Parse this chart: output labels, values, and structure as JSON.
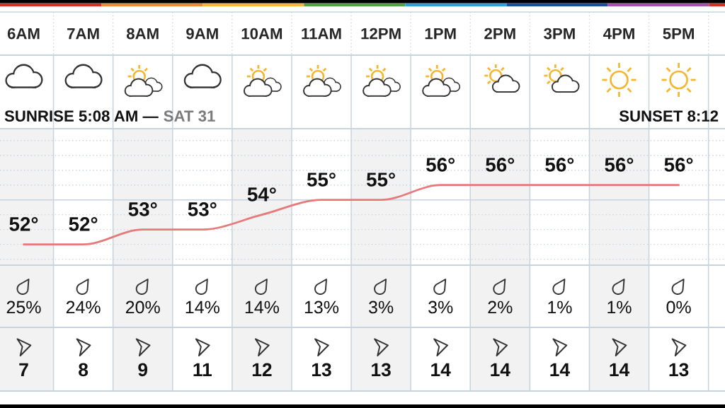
{
  "chart_data": [
    {
      "type": "line",
      "categories": [
        "6AM",
        "7AM",
        "8AM",
        "9AM",
        "10AM",
        "11AM",
        "12PM",
        "1PM",
        "2PM",
        "3PM",
        "4PM",
        "5PM"
      ],
      "values": [
        52,
        52,
        53,
        53,
        54,
        55,
        55,
        56,
        56,
        56,
        56,
        56
      ],
      "value_labels": [
        "52°",
        "52°",
        "53°",
        "53°",
        "54°",
        "55°",
        "55°",
        "56°",
        "56°",
        "56°",
        "56°",
        "56°"
      ],
      "color": "#e8797b",
      "ylim": [
        50.6,
        59.8
      ],
      "yticks": [
        {
          "value": 51,
          "label": null
        },
        {
          "value": 52,
          "label": null
        },
        {
          "value": 53,
          "label": null
        },
        {
          "value": 54,
          "label": null
        },
        {
          "value": 56,
          "label": null
        },
        {
          "value": 57,
          "label": null
        },
        {
          "value": 58,
          "label": null
        },
        {
          "value": 59,
          "label": null
        }
      ],
      "grid": "y",
      "tick_labels": "x",
      "ref_lines": [
        {
          "axis": "y",
          "value": 55,
          "color": "#c8d3e0",
          "line_style": "solid"
        }
      ],
      "bands": [
        {
          "axis": "x",
          "from": "6AM",
          "to": "6AM",
          "color": "#f2f2f2"
        },
        {
          "axis": "x",
          "from": "8AM",
          "to": "8AM",
          "color": "#f2f2f2"
        },
        {
          "axis": "x",
          "from": "10AM",
          "to": "10AM",
          "color": "#f2f2f2"
        },
        {
          "axis": "x",
          "from": "12PM",
          "to": "12PM",
          "color": "#f2f2f2"
        },
        {
          "axis": "x",
          "from": "2PM",
          "to": "2PM",
          "color": "#f2f2f2"
        },
        {
          "axis": "x",
          "from": "4PM",
          "to": "4PM",
          "color": "#f2f2f2"
        }
      ],
      "annotations": [
        "SUNRISE 5:08 AM —",
        "SAT 31",
        "SUNSET 8:12"
      ]
    },
    {
      "type": "other",
      "values": [
        25,
        24,
        20,
        14,
        14,
        13,
        3,
        3,
        2,
        1,
        1,
        0
      ],
      "value_labels": [
        "25%",
        "24%",
        "20%",
        "14%",
        "14%",
        "13%",
        "3%",
        "3%",
        "2%",
        "1%",
        "1%",
        "0%"
      ]
    },
    {
      "type": "other",
      "values": [
        7,
        8,
        9,
        11,
        12,
        13,
        13,
        14,
        14,
        14,
        14,
        13
      ],
      "data_labels": true
    }
  ]
}
